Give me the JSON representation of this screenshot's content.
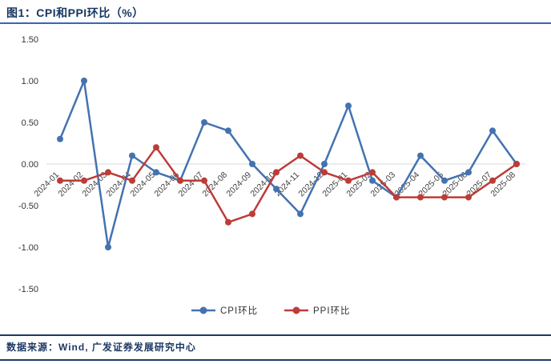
{
  "header": {
    "title": "图1：CPI和PPI环比（%）"
  },
  "footer": {
    "source": "数据来源：Wind, 广发证券发展研究中心"
  },
  "colors": {
    "cpi_line": "#4472b0",
    "ppi_line": "#bc3c38",
    "title_text": "#15355e",
    "top_rule": "#3a67ad",
    "footer_rule": "#1f3864",
    "axis_text": "#404040",
    "zero_axis": "#d9d9d9"
  },
  "chart_data": {
    "type": "line",
    "title": "CPI和PPI环比（%）",
    "categories": [
      "2024-01",
      "2024-02",
      "2024-03",
      "2024-04",
      "2024-05",
      "2024-06",
      "2024-07",
      "2024-08",
      "2024-09",
      "2024-10",
      "2024-11",
      "2024-12",
      "2025-01",
      "2025-02",
      "2025-03",
      "2025-04",
      "2025-05",
      "2025-06",
      "2025-07",
      "2025-08"
    ],
    "series": [
      {
        "name": "CPI环比",
        "color": "#4472b0",
        "values": [
          0.3,
          1.0,
          -1.0,
          0.1,
          -0.1,
          -0.2,
          0.5,
          0.4,
          0.0,
          -0.3,
          -0.6,
          0.0,
          0.7,
          -0.2,
          -0.4,
          0.1,
          -0.2,
          -0.1,
          0.4,
          0.0
        ]
      },
      {
        "name": "PPI环比",
        "color": "#bc3c38",
        "values": [
          -0.2,
          -0.2,
          -0.1,
          -0.2,
          0.2,
          -0.2,
          -0.2,
          -0.7,
          -0.6,
          -0.1,
          0.1,
          -0.1,
          -0.2,
          -0.1,
          -0.4,
          -0.4,
          -0.4,
          -0.4,
          -0.2,
          0.0
        ]
      }
    ],
    "ylim": [
      -1.5,
      1.5
    ],
    "yticks": [
      1.5,
      1.0,
      0.5,
      0.0,
      -0.5,
      -1.0,
      -1.5
    ],
    "ytick_labels": [
      "1.50",
      "1.00",
      "0.50",
      "0.00",
      "-0.50",
      "-1.00",
      "-1.50"
    ],
    "grid": false,
    "legend_position": "bottom",
    "xlabel": "",
    "ylabel": ""
  }
}
